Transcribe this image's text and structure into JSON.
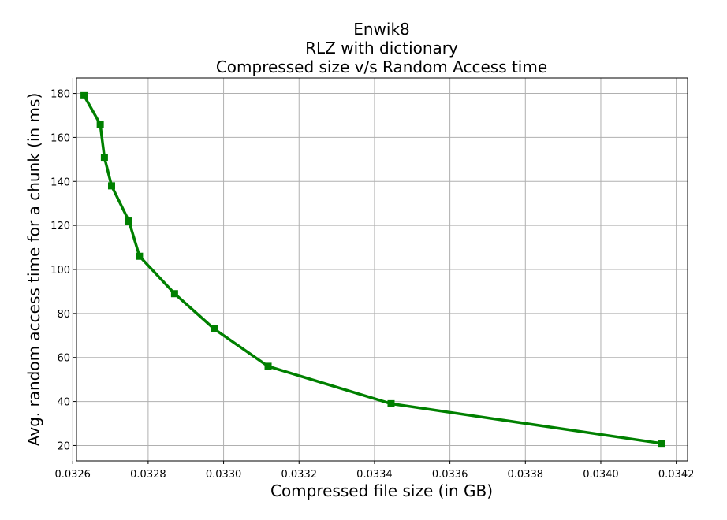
{
  "chart_data": {
    "type": "line",
    "title_lines": [
      "Enwik8",
      "RLZ with dictionary",
      "Compressed size v/s Random Access time"
    ],
    "xlabel": "Compressed file size (in GB)",
    "ylabel": "Avg. random access time for a chunk (in ms)",
    "xlim": [
      0.03261,
      0.03423
    ],
    "ylim": [
      13,
      187
    ],
    "x_ticks": [
      {
        "value": 0.0326,
        "label": "0.0326"
      },
      {
        "value": 0.0328,
        "label": "0.0328"
      },
      {
        "value": 0.033,
        "label": "0.0330"
      },
      {
        "value": 0.0332,
        "label": "0.0332"
      },
      {
        "value": 0.0334,
        "label": "0.0334"
      },
      {
        "value": 0.0336,
        "label": "0.0336"
      },
      {
        "value": 0.0338,
        "label": "0.0338"
      },
      {
        "value": 0.034,
        "label": "0.0340"
      },
      {
        "value": 0.0342,
        "label": "0.0342"
      }
    ],
    "y_ticks": [
      {
        "value": 20,
        "label": "20"
      },
      {
        "value": 40,
        "label": "40"
      },
      {
        "value": 60,
        "label": "60"
      },
      {
        "value": 80,
        "label": "80"
      },
      {
        "value": 100,
        "label": "100"
      },
      {
        "value": 120,
        "label": "120"
      },
      {
        "value": 140,
        "label": "140"
      },
      {
        "value": 160,
        "label": "160"
      },
      {
        "value": 180,
        "label": "180"
      }
    ],
    "grid": true,
    "series": [
      {
        "color": "#008000",
        "marker": "square",
        "points": [
          {
            "x": 0.03263,
            "y": 179
          },
          {
            "x": 0.032673,
            "y": 166
          },
          {
            "x": 0.032684,
            "y": 151
          },
          {
            "x": 0.032703,
            "y": 138
          },
          {
            "x": 0.032749,
            "y": 122
          },
          {
            "x": 0.032777,
            "y": 106
          },
          {
            "x": 0.03287,
            "y": 89
          },
          {
            "x": 0.032975,
            "y": 73
          },
          {
            "x": 0.033118,
            "y": 56
          },
          {
            "x": 0.033444,
            "y": 39
          },
          {
            "x": 0.03416,
            "y": 21
          }
        ]
      }
    ]
  }
}
